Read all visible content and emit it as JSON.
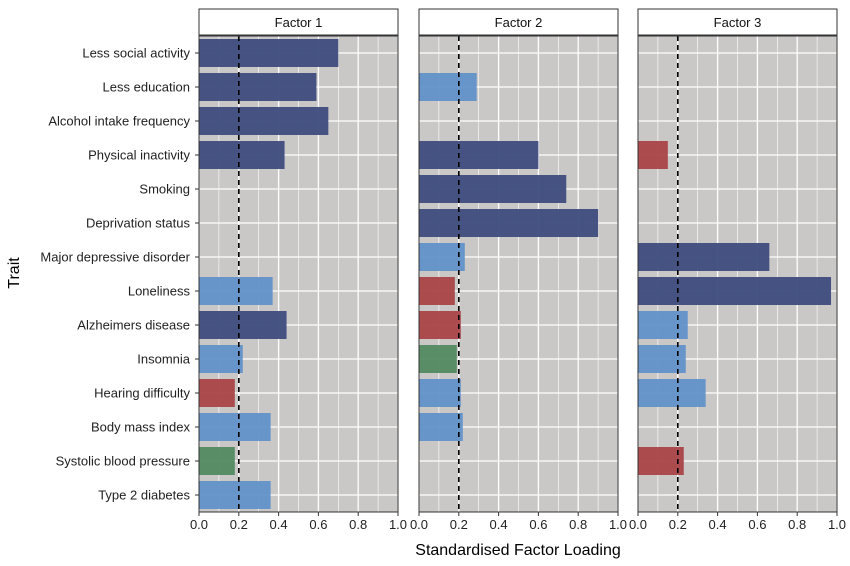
{
  "chart_data": {
    "type": "bar",
    "orientation": "horizontal",
    "xlabel": "Standardised Factor Loading",
    "ylabel": "Trait",
    "xlim": [
      0,
      1
    ],
    "xticks": [
      "0.0",
      "0.2",
      "0.4",
      "0.6",
      "0.8",
      "1.0"
    ],
    "threshold": 0.2,
    "grid": true,
    "colors": {
      "dark_blue": "#3d4c7e",
      "light_blue": "#6192c9",
      "red": "#a94447",
      "green": "#528a61",
      "panel_bg": "#cac7c7",
      "grid": "#ffffff"
    },
    "categories": [
      "Less social activity",
      "Less education",
      "Alcohol intake frequency",
      "Physical inactivity",
      "Smoking",
      "Deprivation status",
      "Major depressive disorder",
      "Loneliness",
      "Alzheimers disease",
      "Insomnia",
      "Hearing difficulty",
      "Body mass index",
      "Systolic blood pressure",
      "Type 2 diabetes"
    ],
    "panels": [
      {
        "name": "Factor 1",
        "values": [
          0.7,
          0.59,
          0.65,
          0.43,
          null,
          null,
          null,
          0.37,
          0.44,
          0.22,
          0.18,
          0.36,
          0.18,
          0.36
        ],
        "colors": [
          "dark_blue",
          "dark_blue",
          "dark_blue",
          "dark_blue",
          null,
          null,
          null,
          "light_blue",
          "dark_blue",
          "light_blue",
          "red",
          "light_blue",
          "green",
          "light_blue"
        ]
      },
      {
        "name": "Factor 2",
        "values": [
          null,
          0.29,
          null,
          0.6,
          0.74,
          0.9,
          0.23,
          0.18,
          0.21,
          0.19,
          0.21,
          0.22,
          null,
          null
        ],
        "colors": [
          null,
          "light_blue",
          null,
          "dark_blue",
          "dark_blue",
          "dark_blue",
          "light_blue",
          "red",
          "red",
          "green",
          "light_blue",
          "light_blue",
          null,
          null
        ]
      },
      {
        "name": "Factor 3",
        "values": [
          null,
          null,
          null,
          0.15,
          null,
          null,
          0.66,
          0.97,
          0.25,
          0.24,
          0.34,
          null,
          0.23,
          null
        ],
        "colors": [
          null,
          null,
          null,
          "red",
          null,
          null,
          "dark_blue",
          "dark_blue",
          "light_blue",
          "light_blue",
          "light_blue",
          null,
          "red",
          null
        ]
      }
    ]
  }
}
